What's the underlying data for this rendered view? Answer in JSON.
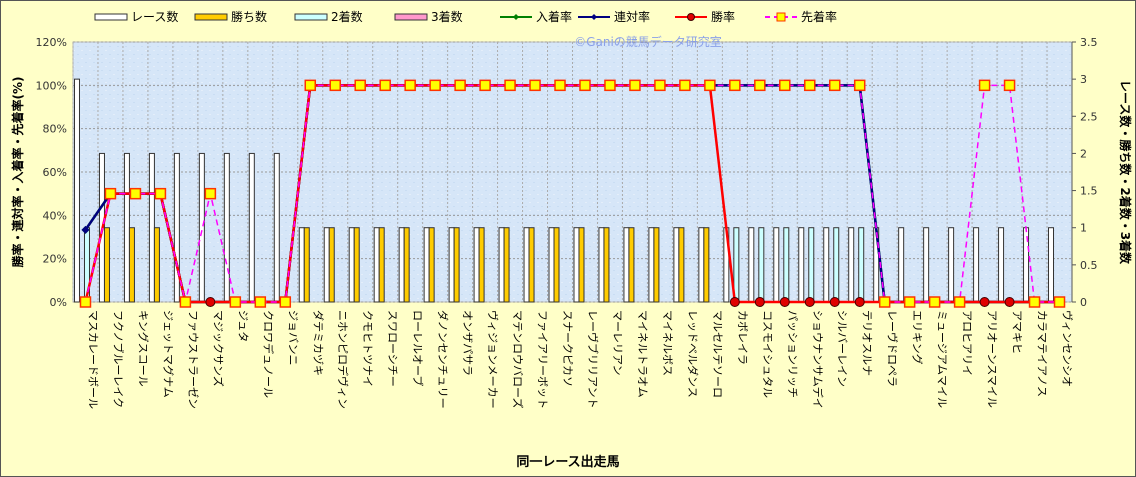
{
  "chart_data": {
    "type": "bar+line",
    "watermark": "©Ganiの競馬データ研究室",
    "xlabel": "同一レース出走馬",
    "ylabel_left": "勝率・連対率・入着率・先着率(%)",
    "ylabel_right": "レース数・勝ち数・2着数・3着数",
    "ylim_left": [
      0,
      120
    ],
    "yticks_left": [
      "0%",
      "20%",
      "40%",
      "60%",
      "80%",
      "100%",
      "120%"
    ],
    "ylim_right": [
      0,
      3.5
    ],
    "yticks_right": [
      "0",
      "0.5",
      "1",
      "1.5",
      "2",
      "2.5",
      "3",
      "3.5"
    ],
    "grid": true,
    "legend_position": "top",
    "categories": [
      "マスカレードボール",
      "フクノブルーレイク",
      "キングスコール",
      "ジェットマグナム",
      "ファウストラーゼン",
      "マジックサンズ",
      "ジュタ",
      "クロワデュノール",
      "ジョバンニ",
      "ダテミカヅキ",
      "ニホンピロデヴィン",
      "クモヒトツナイ",
      "スワローシチー",
      "ローレルオーブ",
      "ダノンセンチュリー",
      "オンザパサラ",
      "ヴィジョンメーカー",
      "マテンロウバローズ",
      "ファイアリーボット",
      "スナークピカソ",
      "レーヴブリリアント",
      "マーレリアン",
      "マイネルトラオム",
      "マイネルボス",
      "レッドベルダンス",
      "マルセルテソーロ",
      "カボレイラ",
      "コスモイシュタル",
      "パッションリッチ",
      "ショウナンサムデイ",
      "シルバーレイン",
      "テリオスルナ",
      "レーヴドロペラ",
      "エリキング",
      "ミュージアムマイル",
      "アロヒアリイ",
      "アリオーンスマイル",
      "アマキヒ",
      "カラマテイアノス",
      "ヴィンセンシオ"
    ],
    "bar_series": [
      {
        "name": "レース数",
        "color": "#FFFFFF",
        "values": [
          3,
          2,
          2,
          2,
          2,
          2,
          2,
          2,
          2,
          1,
          1,
          1,
          1,
          1,
          1,
          1,
          1,
          1,
          1,
          1,
          1,
          1,
          1,
          1,
          1,
          1,
          1,
          1,
          1,
          1,
          1,
          1,
          1,
          1,
          1,
          1,
          1,
          1,
          1,
          1
        ]
      },
      {
        "name": "勝ち数",
        "color": "#FFCC00",
        "values": [
          0,
          1,
          1,
          1,
          0,
          0,
          0,
          0,
          0,
          1,
          1,
          1,
          1,
          1,
          1,
          1,
          1,
          1,
          1,
          1,
          1,
          1,
          1,
          1,
          1,
          1,
          0,
          0,
          0,
          0,
          0,
          0,
          0,
          0,
          0,
          0,
          0,
          0,
          0,
          0
        ]
      },
      {
        "name": "2着数",
        "color": "#CCFFFF",
        "values": [
          1,
          0,
          0,
          0,
          0,
          0,
          0,
          0,
          0,
          0,
          0,
          0,
          0,
          0,
          0,
          0,
          0,
          0,
          0,
          0,
          0,
          0,
          0,
          0,
          0,
          0,
          1,
          1,
          1,
          1,
          1,
          1,
          0,
          0,
          0,
          0,
          0,
          0,
          0,
          0
        ]
      },
      {
        "name": "3着数",
        "color": "#FF99CC",
        "values": [
          0,
          0,
          0,
          0,
          0,
          0,
          0,
          0,
          0,
          0,
          0,
          0,
          0,
          0,
          0,
          0,
          0,
          0,
          0,
          0,
          0,
          0,
          0,
          0,
          0,
          0,
          0,
          0,
          0,
          0,
          0,
          0,
          0,
          0,
          0,
          0,
          0,
          0,
          0,
          0
        ]
      }
    ],
    "line_series": [
      {
        "name": "入着率",
        "color": "#008000",
        "marker": "diamond",
        "values": [
          33.3,
          50,
          50,
          50,
          0,
          0,
          0,
          0,
          0,
          100,
          100,
          100,
          100,
          100,
          100,
          100,
          100,
          100,
          100,
          100,
          100,
          100,
          100,
          100,
          100,
          100,
          100,
          100,
          100,
          100,
          100,
          100,
          0,
          0,
          0,
          0,
          0,
          0,
          0,
          0
        ]
      },
      {
        "name": "連対率",
        "color": "#000080",
        "marker": "diamond",
        "values": [
          33.3,
          50,
          50,
          50,
          0,
          0,
          0,
          0,
          0,
          100,
          100,
          100,
          100,
          100,
          100,
          100,
          100,
          100,
          100,
          100,
          100,
          100,
          100,
          100,
          100,
          100,
          100,
          100,
          100,
          100,
          100,
          100,
          0,
          0,
          0,
          0,
          0,
          0,
          0,
          0
        ]
      },
      {
        "name": "勝率",
        "color": "#FF0000",
        "marker": "circle",
        "values": [
          0,
          50,
          50,
          50,
          0,
          0,
          0,
          0,
          0,
          100,
          100,
          100,
          100,
          100,
          100,
          100,
          100,
          100,
          100,
          100,
          100,
          100,
          100,
          100,
          100,
          100,
          0,
          0,
          0,
          0,
          0,
          0,
          0,
          0,
          0,
          0,
          0,
          0,
          0,
          0
        ]
      },
      {
        "name": "先着率",
        "color": "#FF00FF",
        "marker": "square",
        "dashed": true,
        "values": [
          0,
          50,
          50,
          50,
          0,
          50,
          0,
          0,
          0,
          100,
          100,
          100,
          100,
          100,
          100,
          100,
          100,
          100,
          100,
          100,
          100,
          100,
          100,
          100,
          100,
          100,
          100,
          100,
          100,
          100,
          100,
          100,
          0,
          0,
          0,
          0,
          100,
          100,
          0,
          0
        ]
      }
    ]
  }
}
